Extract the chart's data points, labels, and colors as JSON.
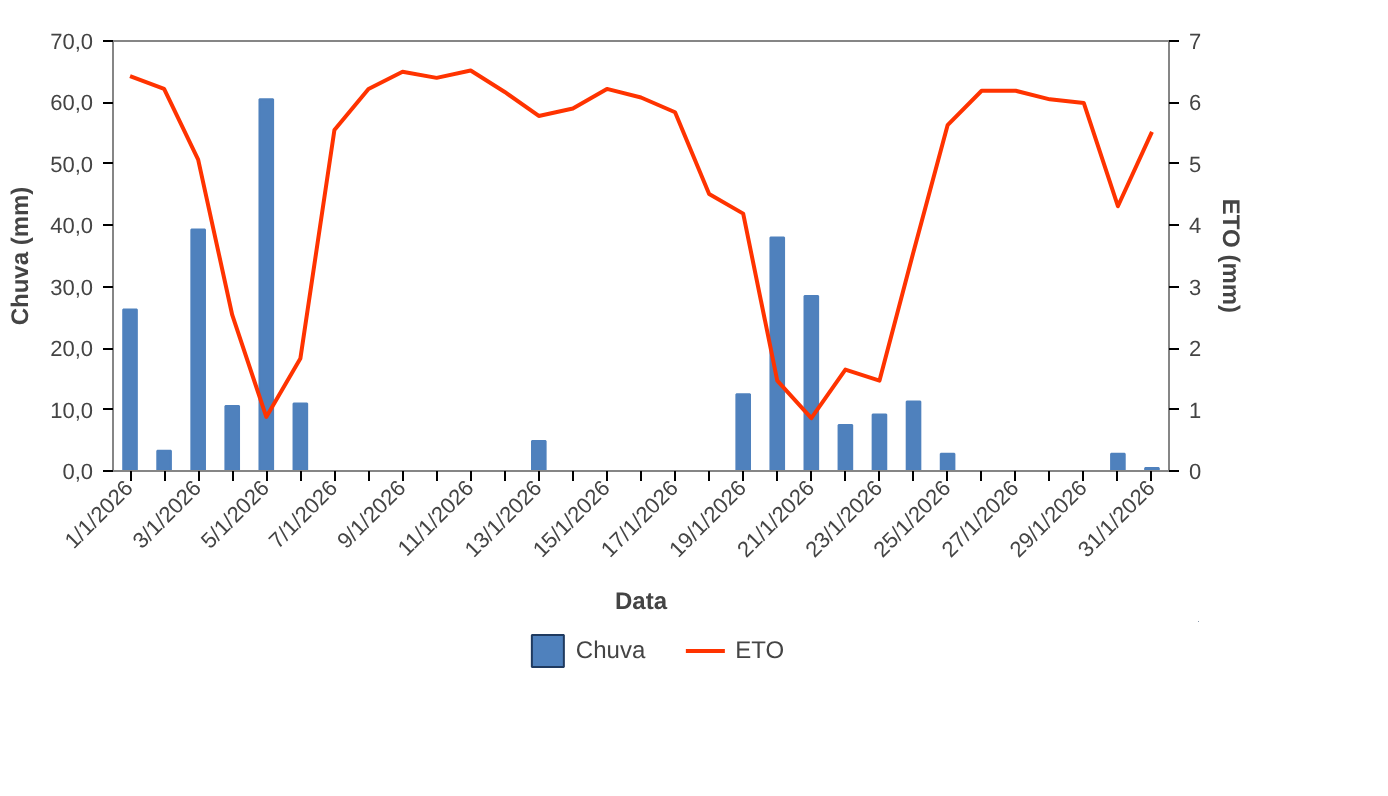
{
  "chart_data": {
    "type": "bar",
    "xlabel": "Data",
    "ylabel": "Chuva (mm)",
    "y2label": "ETO (mm)",
    "categories": [
      "1/1/2026",
      null,
      "3/1/2026",
      null,
      "5/1/2026",
      null,
      "7/1/2026",
      null,
      "9/1/2026",
      null,
      "11/1/2026",
      null,
      "13/1/2026",
      null,
      "15/1/2026",
      null,
      "17/1/2026",
      null,
      "19/1/2026",
      null,
      "21/1/2026",
      null,
      "23/1/2026",
      null,
      "25/1/2026",
      null,
      "27/1/2026",
      null,
      "29/1/2026",
      null,
      "31/1/2026"
    ],
    "series": [
      {
        "name": "Chuva",
        "color": "#4f81bd",
        "values": [
          26.3,
          3.3,
          39.3,
          10.6,
          60.5,
          11,
          0,
          0,
          0,
          0,
          0,
          0,
          4.9,
          0,
          0,
          0,
          0,
          0,
          12.5,
          38,
          28.5,
          7.5,
          9.2,
          11.3,
          2.8,
          0,
          0,
          0,
          0,
          2.8,
          0.5
        ]
      },
      {
        "name": "ETO",
        "type": "line",
        "axis": "y2",
        "color": "#ff3300",
        "values": [
          6.43,
          6.22,
          5.07,
          2.54,
          0.88,
          1.83,
          5.55,
          6.22,
          6.5,
          6.4,
          6.52,
          6.17,
          5.78,
          5.9,
          6.22,
          6.08,
          5.84,
          4.51,
          4.19,
          1.47,
          0.86,
          1.65,
          1.47,
          3.57,
          5.63,
          6.19,
          6.19,
          6.05,
          5.99,
          4.31,
          5.52
        ]
      }
    ],
    "ylim": [
      0,
      70
    ],
    "yticks": [
      {
        "value": 0,
        "label": "0,0"
      },
      {
        "value": 10,
        "label": "10,0"
      },
      {
        "value": 20,
        "label": "20,0"
      },
      {
        "value": 30,
        "label": "30,0"
      },
      {
        "value": 40,
        "label": "40,0"
      },
      {
        "value": 50,
        "label": "50,0"
      },
      {
        "value": 60,
        "label": "60,0"
      },
      {
        "value": 70,
        "label": "70,0"
      }
    ],
    "y2lim": [
      0,
      7
    ],
    "y2ticks": [
      0,
      1,
      2,
      3,
      4,
      5,
      6,
      7
    ],
    "legend": "bottom",
    "grid": false
  }
}
